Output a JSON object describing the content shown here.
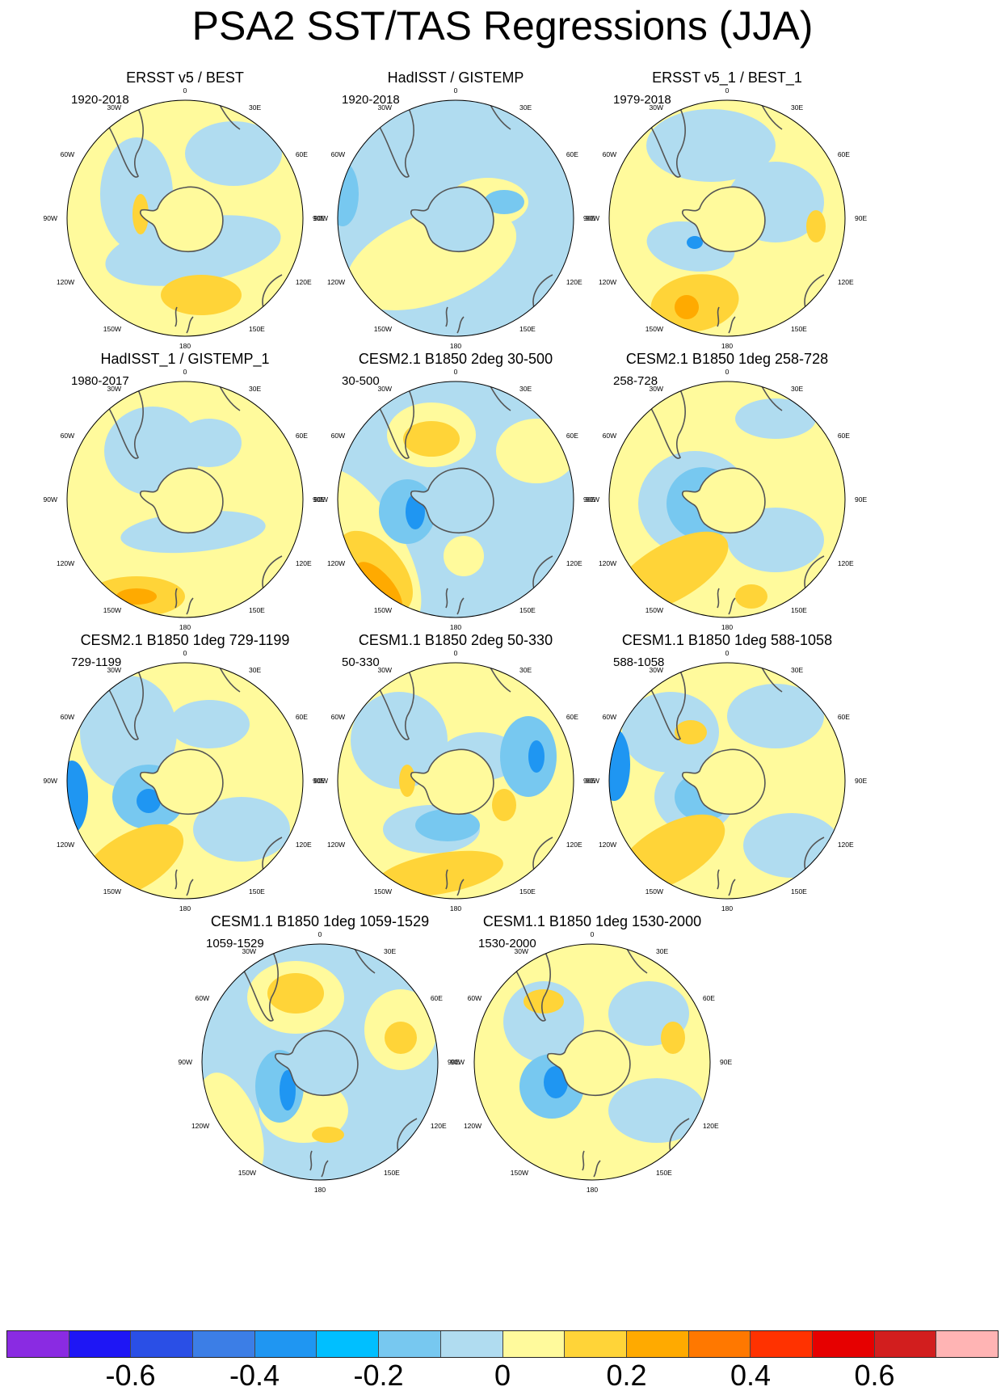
{
  "title": "PSA2 SST/TAS Regressions (JJA)",
  "lon_labels": [
    "0",
    "30E",
    "60E",
    "90E",
    "120E",
    "150E",
    "180",
    "150W",
    "120W",
    "90W",
    "60W",
    "30W"
  ],
  "panels": [
    {
      "title": "ERSST v5 / BEST",
      "years": "1920-2018"
    },
    {
      "title": "HadISST / GISTEMP",
      "years": "1920-2018"
    },
    {
      "title": "ERSST v5_1 / BEST_1",
      "years": "1979-2018"
    },
    {
      "title": "HadISST_1 / GISTEMP_1",
      "years": "1980-2017"
    },
    {
      "title": "CESM2.1 B1850 2deg 30-500",
      "years": "30-500"
    },
    {
      "title": "CESM2.1 B1850 1deg 258-728",
      "years": "258-728"
    },
    {
      "title": "CESM2.1 B1850 1deg 729-1199",
      "years": "729-1199"
    },
    {
      "title": "CESM1.1 B1850 2deg 50-330",
      "years": "50-330"
    },
    {
      "title": "CESM1.1 B1850 1deg 588-1058",
      "years": "588-1058"
    },
    {
      "title": "CESM1.1 B1850 1deg 1059-1529",
      "years": "1059-1529"
    },
    {
      "title": "CESM1.1 B1850 1deg 1530-2000",
      "years": "1530-2000"
    }
  ],
  "colorbar": {
    "colors": [
      "#8a2be2",
      "#1e16f5",
      "#2a4fe6",
      "#3c7ee6",
      "#1f96f2",
      "#00bfff",
      "#77c8f0",
      "#b0dcf0",
      "#fffa9c",
      "#ffd438",
      "#ffaa00",
      "#ff7800",
      "#ff3200",
      "#e60000",
      "#d21e1e",
      "#ffb4b4"
    ],
    "labels": [
      "-0.6",
      "-0.4",
      "-0.2",
      "0",
      "0.2",
      "0.4",
      "0.6"
    ],
    "label_values": [
      -0.6,
      -0.4,
      -0.2,
      0,
      0.2,
      0.4,
      0.6
    ],
    "range": [
      -0.8,
      0.8
    ]
  }
}
